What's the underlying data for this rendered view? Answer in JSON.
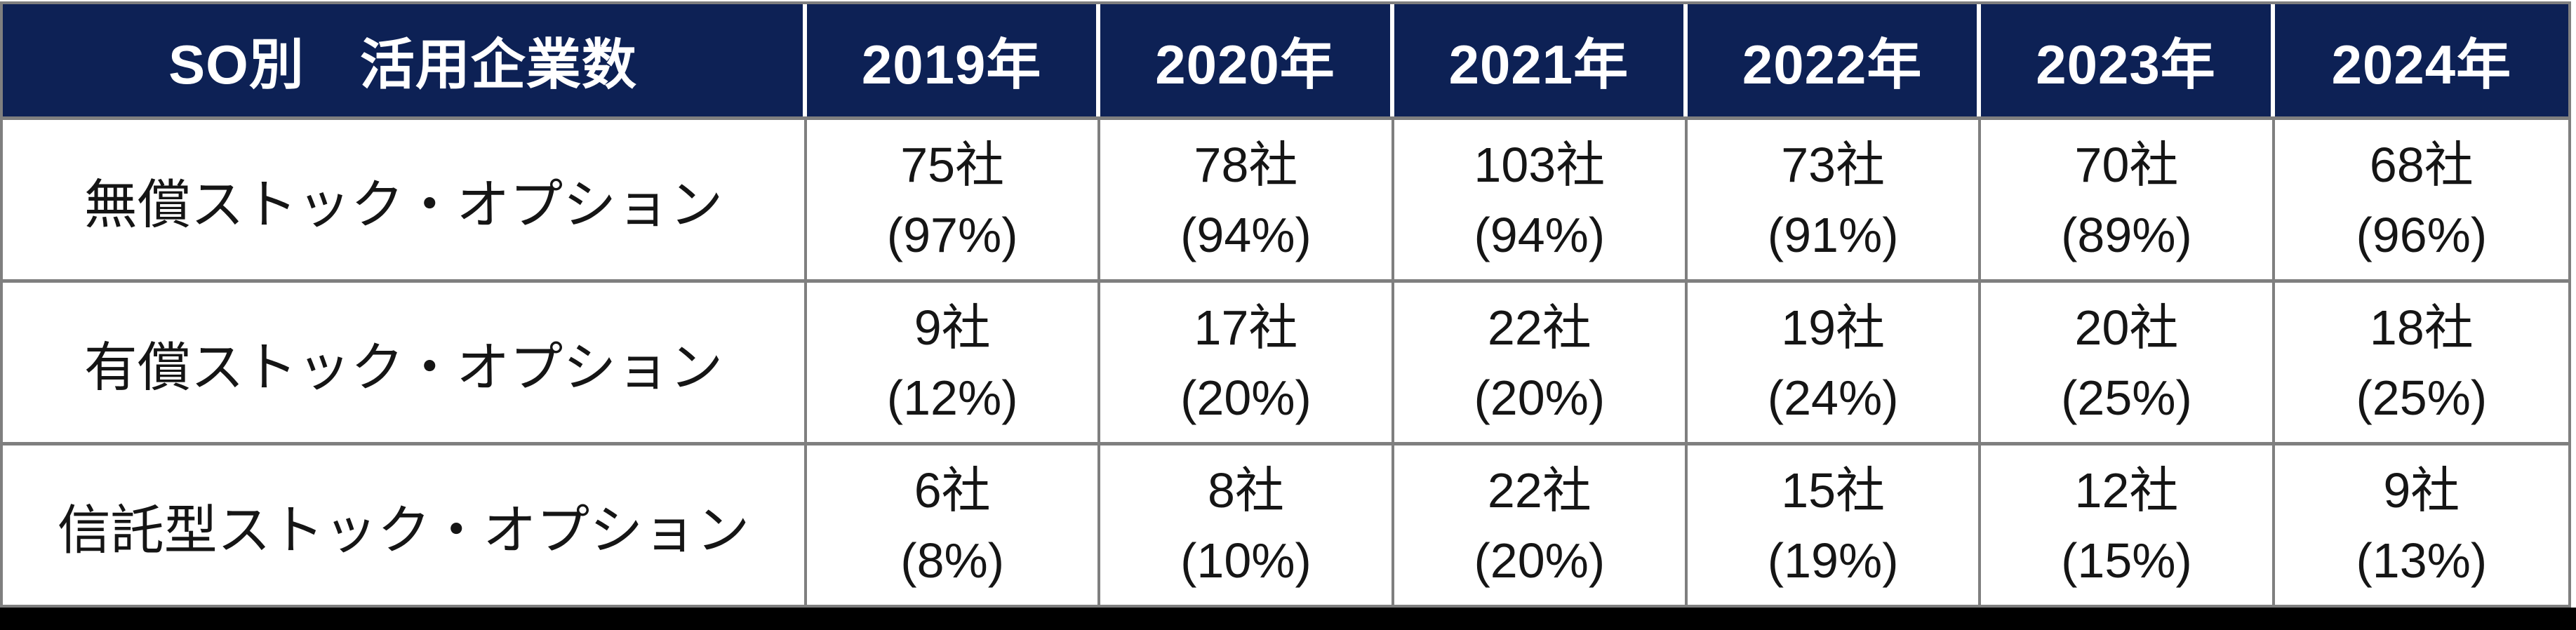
{
  "table": {
    "corner_header": "SO別　活用企業数",
    "columns": [
      "2019年",
      "2020年",
      "2021年",
      "2022年",
      "2023年",
      "2024年"
    ],
    "rows": [
      {
        "label": "無償ストック・オプション",
        "cells": [
          {
            "count": "75社",
            "pct": "(97%)"
          },
          {
            "count": "78社",
            "pct": "(94%)"
          },
          {
            "count": "103社",
            "pct": "(94%)"
          },
          {
            "count": "73社",
            "pct": "(91%)"
          },
          {
            "count": "70社",
            "pct": "(89%)"
          },
          {
            "count": "68社",
            "pct": "(96%)"
          }
        ]
      },
      {
        "label": "有償ストック・オプション",
        "cells": [
          {
            "count": "9社",
            "pct": "(12%)"
          },
          {
            "count": "17社",
            "pct": "(20%)"
          },
          {
            "count": "22社",
            "pct": "(20%)"
          },
          {
            "count": "19社",
            "pct": "(24%)"
          },
          {
            "count": "20社",
            "pct": "(25%)"
          },
          {
            "count": "18社",
            "pct": "(25%)"
          }
        ]
      },
      {
        "label": "信託型ストック・オプション",
        "cells": [
          {
            "count": "6社",
            "pct": "(8%)"
          },
          {
            "count": "8社",
            "pct": "(10%)"
          },
          {
            "count": "22社",
            "pct": "(20%)"
          },
          {
            "count": "15社",
            "pct": "(19%)"
          },
          {
            "count": "12社",
            "pct": "(15%)"
          },
          {
            "count": "9社",
            "pct": "(13%)"
          }
        ]
      }
    ]
  },
  "chart_data": {
    "type": "table",
    "title": "SO別　活用企業数",
    "categories": [
      "2019年",
      "2020年",
      "2021年",
      "2022年",
      "2023年",
      "2024年"
    ],
    "series": [
      {
        "name": "無償ストック・オプション",
        "values": [
          75,
          78,
          103,
          73,
          70,
          68
        ],
        "percentages": [
          97,
          94,
          94,
          91,
          89,
          96
        ]
      },
      {
        "name": "有償ストック・オプション",
        "values": [
          9,
          17,
          22,
          19,
          20,
          18
        ],
        "percentages": [
          12,
          20,
          20,
          24,
          25,
          25
        ]
      },
      {
        "name": "信託型ストック・オプション",
        "values": [
          6,
          8,
          22,
          15,
          12,
          9
        ],
        "percentages": [
          8,
          10,
          20,
          19,
          15,
          13
        ]
      }
    ]
  },
  "colors": {
    "header_bg": "#0d2155",
    "header_text": "#ffffff",
    "header_separator": "#ffffff",
    "grid_border": "#7f7f7f",
    "body_bg": "#ffffff",
    "body_text": "#151515",
    "bottom_bar": "#000000"
  }
}
